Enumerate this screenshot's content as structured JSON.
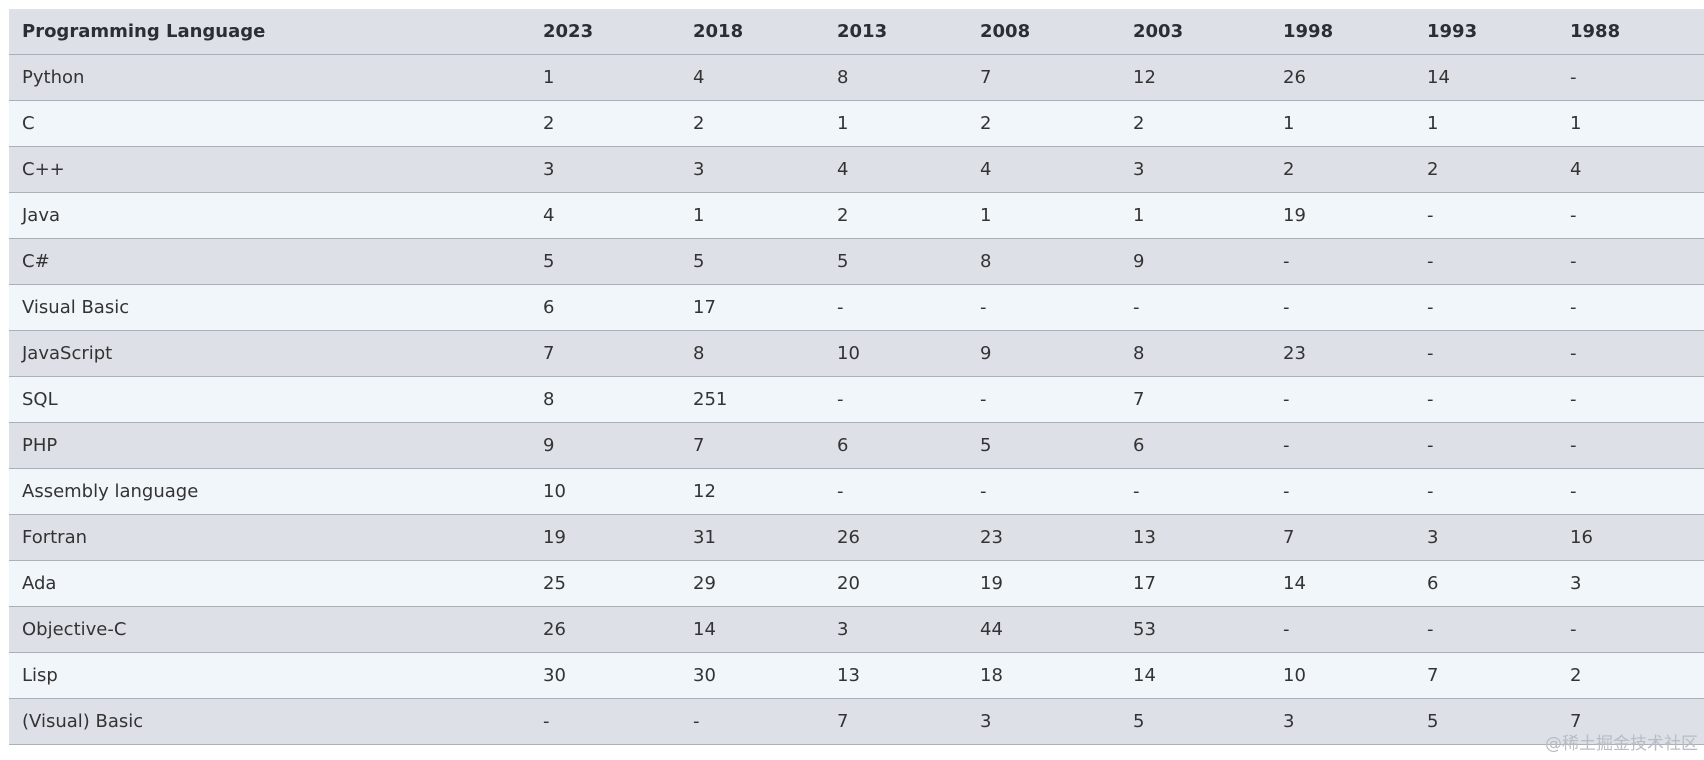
{
  "table": {
    "header": [
      "Programming Language",
      "2023",
      "2018",
      "2013",
      "2008",
      "2003",
      "1998",
      "1993",
      "1988"
    ],
    "rows": [
      [
        "Python",
        1,
        4,
        8,
        7,
        12,
        26,
        14,
        "-"
      ],
      [
        "C",
        2,
        2,
        1,
        2,
        2,
        1,
        1,
        1
      ],
      [
        "C++",
        3,
        3,
        4,
        4,
        3,
        2,
        2,
        4
      ],
      [
        "Java",
        4,
        1,
        2,
        1,
        1,
        19,
        "-",
        "-"
      ],
      [
        "C#",
        5,
        5,
        5,
        8,
        9,
        "-",
        "-",
        "-"
      ],
      [
        "Visual Basic",
        6,
        17,
        "-",
        "-",
        "-",
        "-",
        "-",
        "-"
      ],
      [
        "JavaScript",
        7,
        8,
        10,
        9,
        8,
        23,
        "-",
        "-"
      ],
      [
        "SQL",
        8,
        251,
        "-",
        "-",
        7,
        "-",
        "-",
        "-"
      ],
      [
        "PHP",
        9,
        7,
        6,
        5,
        6,
        "-",
        "-",
        "-"
      ],
      [
        "Assembly language",
        10,
        12,
        "-",
        "-",
        "-",
        "-",
        "-",
        "-"
      ],
      [
        "Fortran",
        19,
        31,
        26,
        23,
        13,
        7,
        3,
        16
      ],
      [
        "Ada",
        25,
        29,
        20,
        19,
        17,
        14,
        6,
        3
      ],
      [
        "Objective-C",
        26,
        14,
        3,
        44,
        53,
        "-",
        "-",
        "-"
      ],
      [
        "Lisp",
        30,
        30,
        13,
        18,
        14,
        10,
        7,
        2
      ],
      [
        "(Visual) Basic",
        "-",
        "-",
        7,
        3,
        5,
        3,
        5,
        7
      ]
    ]
  },
  "watermark": "@稀土掘金技术社区"
}
